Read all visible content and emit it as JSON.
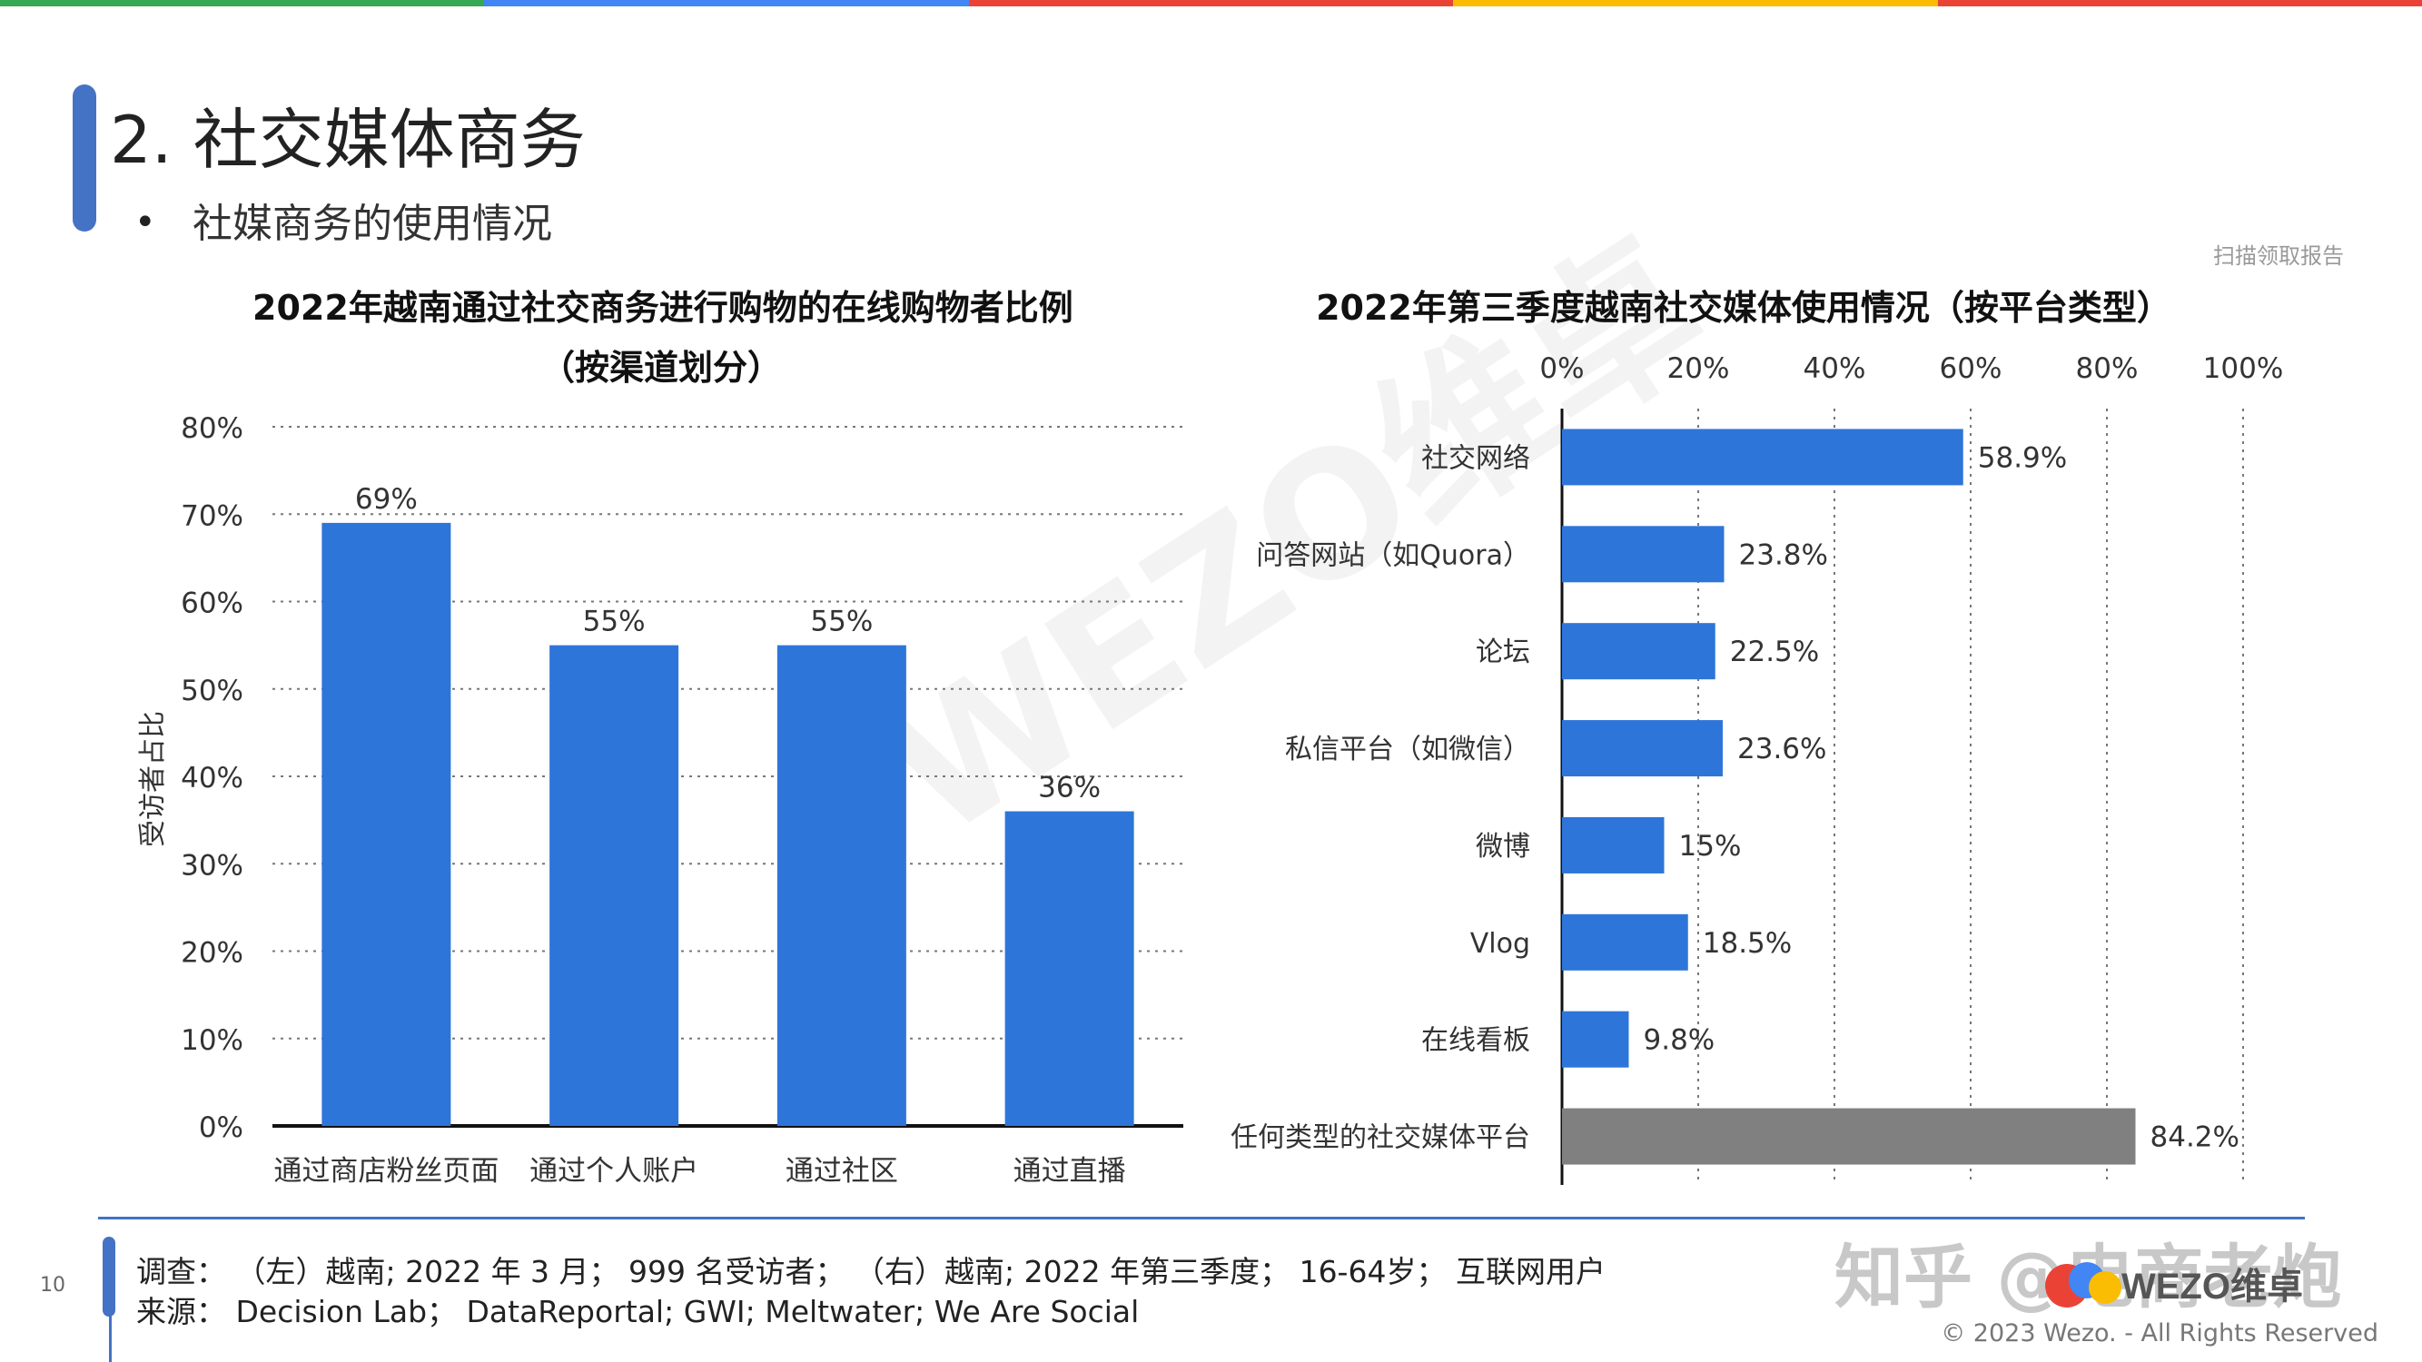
{
  "topbar_colors": [
    "#34A853",
    "#4285F4",
    "#EA4335",
    "#FBBC04",
    "#EA4335"
  ],
  "accent_color": "#4472C4",
  "header": {
    "title": "2. 社交媒体商务",
    "bullet": "•",
    "subtitle": "社媒商务的使用情况",
    "scan_note": "扫描领取报告"
  },
  "left_chart": {
    "title_line1": "2022年越南通过社交商务进行购物的在线购物者比例",
    "title_line2": "（按渠道划分）"
  },
  "right_chart": {
    "title": "2022年第三季度越南社交媒体使用情况（按平台类型）"
  },
  "chart_data": [
    {
      "type": "bar",
      "title": "2022年越南通过社交商务进行购物的在线购物者比例（按渠道划分）",
      "ylabel": "受访者占比",
      "categories": [
        "通过商店粉丝页面",
        "通过个人账户",
        "通过社区",
        "通过直播"
      ],
      "values": [
        69,
        55,
        55,
        36
      ],
      "value_labels": [
        "69%",
        "55%",
        "55%",
        "36%"
      ],
      "ylim": [
        0,
        80
      ],
      "yticks": [
        "0%",
        "10%",
        "20%",
        "30%",
        "40%",
        "50%",
        "60%",
        "70%",
        "80%"
      ],
      "bar_color": "#2E75D9",
      "grid": true
    },
    {
      "type": "bar",
      "orientation": "horizontal",
      "title": "2022年第三季度越南社交媒体使用情况（按平台类型）",
      "categories": [
        "社交网络",
        "问答网站（如Quora）",
        "论坛",
        "私信平台（如微信）",
        "微博",
        "Vlog",
        "在线看板",
        "任何类型的社交媒体平台"
      ],
      "values": [
        58.9,
        23.8,
        22.5,
        23.6,
        15,
        18.5,
        9.8,
        84.2
      ],
      "value_labels": [
        "58.9%",
        "23.8%",
        "22.5%",
        "23.6%",
        "15%",
        "18.5%",
        "9.8%",
        "84.2%"
      ],
      "xlim": [
        0,
        100
      ],
      "xticks": [
        "0%",
        "20%",
        "40%",
        "60%",
        "80%",
        "100%"
      ],
      "bar_color": "#2E75D9",
      "highlight_color": "#808080",
      "grid": true
    }
  ],
  "footer": {
    "page_number": "10",
    "survey": "调查： （左）越南; 2022 年 3 月； 999 名受访者； （右）越南; 2022 年第三季度； 16-64岁； 互联网用户",
    "source": "来源： Decision Lab； DataReportal; GWI; Meltwater; We Are Social",
    "copyright": "© 2023 Wezo. - All Rights Reserved",
    "brand": "知乎 @电商老炮",
    "logo_text": "WEZO维卓"
  },
  "watermark": "WEZO维卓"
}
